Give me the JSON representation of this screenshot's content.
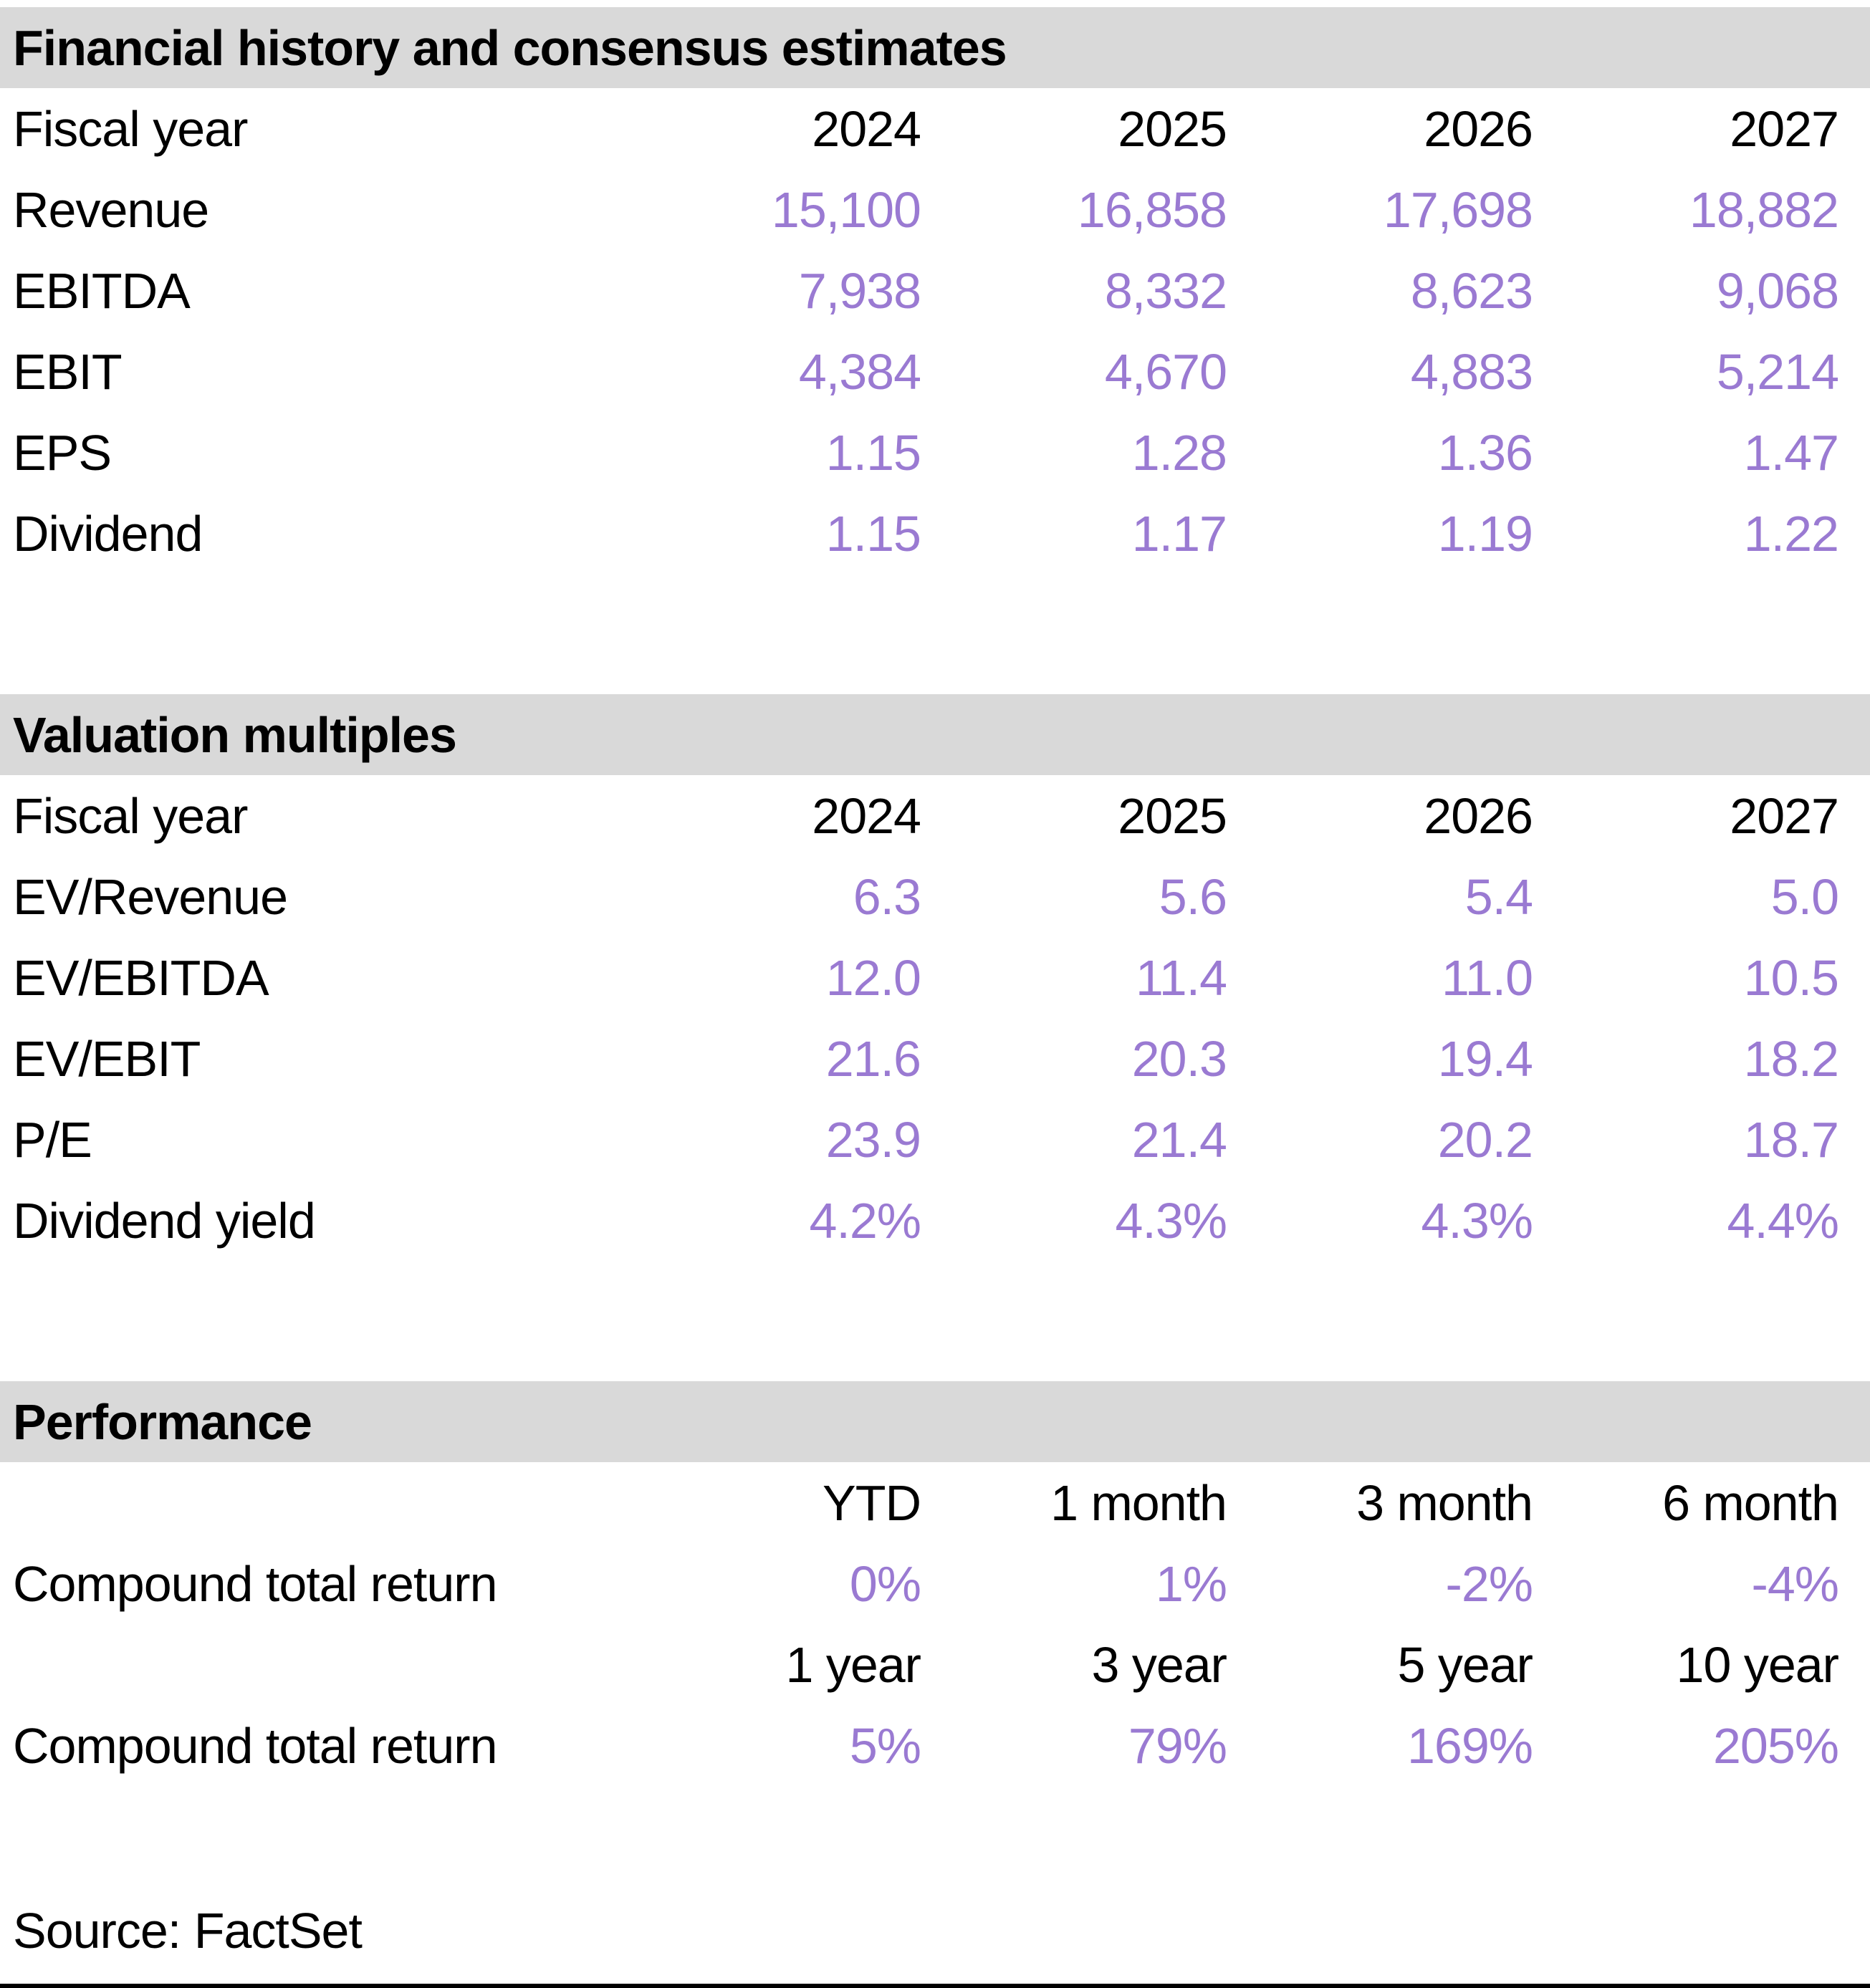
{
  "colors": {
    "section_header_bg": "#d9d9d9",
    "value_text": "#9a7ad2",
    "label_text": "#000000"
  },
  "sections": {
    "financial": {
      "title": "Financial history and consensus estimates",
      "col_header_label": "Fiscal year",
      "columns": [
        "2024",
        "2025",
        "2026",
        "2027"
      ],
      "rows": [
        {
          "label": "Revenue",
          "values": [
            "15,100",
            "16,858",
            "17,698",
            "18,882"
          ]
        },
        {
          "label": "EBITDA",
          "values": [
            "7,938",
            "8,332",
            "8,623",
            "9,068"
          ]
        },
        {
          "label": "EBIT",
          "values": [
            "4,384",
            "4,670",
            "4,883",
            "5,214"
          ]
        },
        {
          "label": "EPS",
          "values": [
            "1.15",
            "1.28",
            "1.36",
            "1.47"
          ]
        },
        {
          "label": "Dividend",
          "values": [
            "1.15",
            "1.17",
            "1.19",
            "1.22"
          ]
        }
      ]
    },
    "valuation": {
      "title": "Valuation multiples",
      "col_header_label": "Fiscal year",
      "columns": [
        "2024",
        "2025",
        "2026",
        "2027"
      ],
      "rows": [
        {
          "label": "EV/Revenue",
          "values": [
            "6.3",
            "5.6",
            "5.4",
            "5.0"
          ]
        },
        {
          "label": "EV/EBITDA",
          "values": [
            "12.0",
            "11.4",
            "11.0",
            "10.5"
          ]
        },
        {
          "label": "EV/EBIT",
          "values": [
            "21.6",
            "20.3",
            "19.4",
            "18.2"
          ]
        },
        {
          "label": "P/E",
          "values": [
            "23.9",
            "21.4",
            "20.2",
            "18.7"
          ]
        },
        {
          "label": "Dividend yield",
          "values": [
            "4.2%",
            "4.3%",
            "4.3%",
            "4.4%"
          ]
        }
      ]
    },
    "performance": {
      "title": "Performance",
      "groups": [
        {
          "columns": [
            "YTD",
            "1 month",
            "3 month",
            "6 month"
          ],
          "row_label": "Compound total return",
          "values": [
            "0%",
            "1%",
            "-2%",
            "-4%"
          ]
        },
        {
          "columns": [
            "1 year",
            "3 year",
            "5 year",
            "10 year"
          ],
          "row_label": "Compound total return",
          "values": [
            "5%",
            "79%",
            "169%",
            "205%"
          ]
        }
      ]
    }
  },
  "footer": {
    "source": "Source: FactSet"
  }
}
